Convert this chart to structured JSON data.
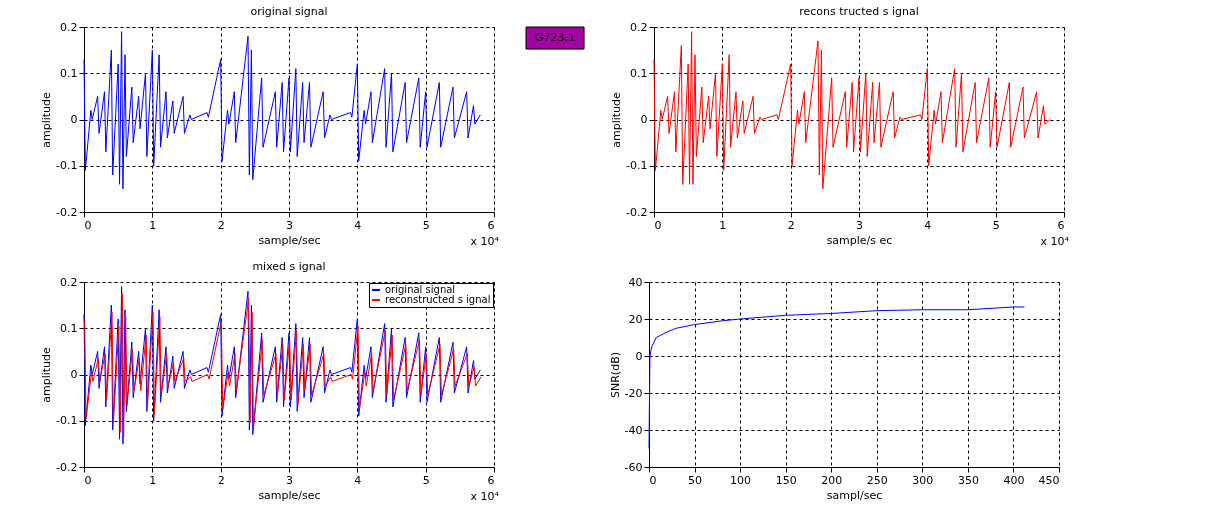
{
  "chart_data": [
    {
      "type": "line",
      "title": "original signal",
      "xlabel": "sample/sec",
      "ylabel": "amplitude",
      "xlim": [
        0,
        6
      ],
      "xticks": [
        0,
        1,
        2,
        3,
        4,
        5,
        6
      ],
      "ylim": [
        -0.2,
        0.2
      ],
      "yticks": [
        -0.2,
        -0.1,
        0,
        0.1,
        0.2
      ],
      "grid": true,
      "line_style": "solid",
      "annotations": [
        "x 10⁴"
      ],
      "x": [
        0.0,
        0.02,
        0.1,
        0.12,
        0.2,
        0.22,
        0.3,
        0.32,
        0.4,
        0.42,
        0.5,
        0.52,
        0.55,
        0.57,
        0.6,
        0.62,
        0.7,
        0.72,
        0.8,
        0.82,
        0.9,
        0.92,
        1.0,
        1.02,
        1.1,
        1.12,
        1.2,
        1.22,
        1.3,
        1.32,
        1.45,
        1.47,
        1.55,
        1.57,
        1.8,
        1.82,
        2.0,
        2.02,
        2.1,
        2.12,
        2.2,
        2.22,
        2.4,
        2.42,
        2.45,
        2.47,
        2.6,
        2.62,
        2.8,
        2.82,
        2.9,
        2.92,
        3.0,
        3.02,
        3.1,
        3.12,
        3.2,
        3.22,
        3.3,
        3.32,
        3.5,
        3.52,
        3.6,
        3.62,
        3.9,
        3.92,
        4.0,
        4.02,
        4.1,
        4.12,
        4.2,
        4.22,
        4.4,
        4.42,
        4.5,
        4.52,
        4.7,
        4.72,
        4.9,
        4.92,
        5.0,
        5.02,
        5.2,
        5.22,
        5.4,
        5.42,
        5.6,
        5.62,
        5.7,
        5.72,
        5.8
      ],
      "series": [
        {
          "color": "#0000ff",
          "values": [
            0.13,
            -0.11,
            0.02,
            0.0,
            0.05,
            -0.03,
            0.06,
            -0.07,
            0.15,
            -0.12,
            0.12,
            -0.14,
            0.19,
            -0.15,
            0.14,
            -0.08,
            0.07,
            -0.05,
            0.05,
            -0.02,
            0.1,
            -0.08,
            0.15,
            -0.1,
            0.14,
            -0.06,
            0.06,
            -0.04,
            0.04,
            -0.03,
            0.05,
            -0.03,
            0.01,
            0.0,
            0.015,
            0.005,
            0.13,
            -0.09,
            0.02,
            -0.01,
            0.06,
            -0.05,
            0.18,
            -0.12,
            0.15,
            -0.13,
            0.09,
            -0.06,
            0.06,
            -0.06,
            0.08,
            -0.07,
            0.09,
            -0.07,
            0.11,
            -0.08,
            0.08,
            -0.05,
            0.08,
            -0.06,
            0.06,
            -0.04,
            0.01,
            0.0,
            0.015,
            0.005,
            0.12,
            -0.09,
            0.02,
            -0.01,
            0.06,
            -0.05,
            0.11,
            -0.06,
            0.1,
            -0.07,
            0.08,
            -0.05,
            0.09,
            -0.06,
            0.06,
            -0.06,
            0.08,
            -0.06,
            0.07,
            -0.04,
            0.06,
            -0.04,
            0.03,
            -0.01,
            0.01
          ]
        }
      ]
    },
    {
      "type": "other",
      "title": "G723.1",
      "color": "#a400a4"
    },
    {
      "type": "line",
      "title": "recons tructed s ignal",
      "xlabel": "sample/s ec",
      "ylabel": "amplitude",
      "xlim": [
        0,
        6
      ],
      "xticks": [
        0,
        1,
        2,
        3,
        4,
        5,
        6
      ],
      "ylim": [
        -0.2,
        0.2
      ],
      "yticks": [
        -0.2,
        -0.1,
        0,
        0.1,
        0.2
      ],
      "grid": true,
      "line_style": "solid",
      "annotations": [
        "x 10⁴"
      ],
      "x": [
        0.0,
        0.02,
        0.1,
        0.12,
        0.2,
        0.22,
        0.3,
        0.32,
        0.4,
        0.42,
        0.5,
        0.52,
        0.55,
        0.57,
        0.6,
        0.62,
        0.7,
        0.72,
        0.8,
        0.82,
        0.9,
        0.92,
        1.0,
        1.02,
        1.1,
        1.12,
        1.2,
        1.22,
        1.3,
        1.32,
        1.45,
        1.47,
        1.55,
        1.57,
        1.8,
        1.82,
        2.0,
        2.02,
        2.1,
        2.12,
        2.2,
        2.22,
        2.4,
        2.42,
        2.45,
        2.47,
        2.6,
        2.62,
        2.8,
        2.82,
        2.9,
        2.92,
        3.0,
        3.02,
        3.1,
        3.12,
        3.2,
        3.22,
        3.3,
        3.32,
        3.5,
        3.52,
        3.6,
        3.62,
        3.9,
        3.92,
        4.0,
        4.02,
        4.1,
        4.12,
        4.2,
        4.22,
        4.4,
        4.42,
        4.5,
        4.52,
        4.7,
        4.72,
        4.9,
        4.92,
        5.0,
        5.02,
        5.2,
        5.22,
        5.4,
        5.42,
        5.6,
        5.62,
        5.7,
        5.72,
        5.8
      ],
      "series": [
        {
          "color": "#ff0000",
          "values": [
            0.13,
            -0.11,
            0.02,
            0.0,
            0.05,
            -0.03,
            0.06,
            -0.07,
            0.16,
            -0.14,
            0.12,
            -0.14,
            0.19,
            -0.14,
            0.14,
            -0.08,
            0.07,
            -0.05,
            0.05,
            -0.02,
            0.1,
            -0.08,
            0.12,
            -0.11,
            0.14,
            -0.06,
            0.06,
            -0.04,
            0.04,
            -0.03,
            0.05,
            -0.03,
            0.005,
            0.0,
            0.01,
            0.0,
            0.12,
            -0.1,
            0.02,
            -0.01,
            0.06,
            -0.05,
            0.17,
            -0.12,
            0.15,
            -0.15,
            0.09,
            -0.06,
            0.06,
            -0.06,
            0.08,
            -0.07,
            0.09,
            -0.07,
            0.1,
            -0.08,
            0.08,
            -0.05,
            0.08,
            -0.06,
            0.06,
            -0.04,
            0.005,
            0.0,
            0.01,
            0.0,
            0.11,
            -0.1,
            0.02,
            -0.01,
            0.06,
            -0.05,
            0.11,
            -0.06,
            0.1,
            -0.07,
            0.08,
            -0.05,
            0.09,
            -0.06,
            0.06,
            -0.06,
            0.08,
            -0.06,
            0.07,
            -0.04,
            0.06,
            -0.04,
            0.03,
            -0.01,
            0.0
          ]
        }
      ]
    },
    {
      "type": "line",
      "title": "mixed s ignal",
      "xlabel": "sample/sec",
      "ylabel": "amplitude",
      "xlim": [
        0,
        6
      ],
      "xticks": [
        0,
        1,
        2,
        3,
        4,
        5,
        6
      ],
      "ylim": [
        -0.2,
        0.2
      ],
      "yticks": [
        -0.2,
        -0.1,
        0,
        0.1,
        0.2
      ],
      "grid": true,
      "line_style": "solid",
      "legend": "top right",
      "annotations": [
        "x 10⁴"
      ],
      "x": [
        0.0,
        0.02,
        0.1,
        0.12,
        0.2,
        0.22,
        0.3,
        0.32,
        0.4,
        0.42,
        0.5,
        0.52,
        0.55,
        0.57,
        0.6,
        0.62,
        0.7,
        0.72,
        0.8,
        0.82,
        0.9,
        0.92,
        1.0,
        1.02,
        1.1,
        1.12,
        1.2,
        1.22,
        1.3,
        1.32,
        1.45,
        1.47,
        1.55,
        1.57,
        1.8,
        1.82,
        2.0,
        2.02,
        2.1,
        2.12,
        2.2,
        2.22,
        2.4,
        2.42,
        2.45,
        2.47,
        2.6,
        2.62,
        2.8,
        2.82,
        2.9,
        2.92,
        3.0,
        3.02,
        3.1,
        3.12,
        3.2,
        3.22,
        3.3,
        3.32,
        3.5,
        3.52,
        3.6,
        3.62,
        3.9,
        3.92,
        4.0,
        4.02,
        4.1,
        4.12,
        4.2,
        4.22,
        4.4,
        4.42,
        4.5,
        4.52,
        4.7,
        4.72,
        4.9,
        4.92,
        5.0,
        5.02,
        5.2,
        5.22,
        5.4,
        5.42,
        5.6,
        5.62,
        5.7,
        5.72,
        5.8
      ],
      "series": [
        {
          "name": "original signal",
          "color": "#0000ff",
          "values": [
            0.13,
            -0.11,
            0.02,
            0.0,
            0.05,
            -0.03,
            0.06,
            -0.07,
            0.15,
            -0.12,
            0.12,
            -0.14,
            0.19,
            -0.15,
            0.14,
            -0.08,
            0.07,
            -0.05,
            0.05,
            -0.02,
            0.1,
            -0.08,
            0.15,
            -0.1,
            0.14,
            -0.06,
            0.06,
            -0.04,
            0.04,
            -0.03,
            0.05,
            -0.03,
            0.01,
            0.0,
            0.015,
            0.005,
            0.13,
            -0.09,
            0.02,
            -0.01,
            0.06,
            -0.05,
            0.18,
            -0.12,
            0.15,
            -0.13,
            0.09,
            -0.06,
            0.06,
            -0.06,
            0.08,
            -0.07,
            0.09,
            -0.07,
            0.11,
            -0.08,
            0.08,
            -0.05,
            0.08,
            -0.06,
            0.06,
            -0.04,
            0.01,
            0.0,
            0.015,
            0.005,
            0.12,
            -0.09,
            0.02,
            -0.01,
            0.06,
            -0.05,
            0.11,
            -0.06,
            0.1,
            -0.07,
            0.08,
            -0.05,
            0.09,
            -0.06,
            0.06,
            -0.06,
            0.08,
            -0.06,
            0.07,
            -0.04,
            0.06,
            -0.04,
            0.03,
            -0.01,
            0.01
          ]
        },
        {
          "name": "reconstructed s ignal",
          "color": "#ff0000",
          "x": [
            0.01,
            0.03,
            0.11,
            0.13,
            0.21,
            0.23,
            0.31,
            0.33,
            0.41,
            0.43,
            0.51,
            0.53,
            0.56,
            0.58,
            0.61,
            0.63,
            0.71,
            0.73,
            0.81,
            0.83,
            0.91,
            0.93,
            1.01,
            1.03,
            1.11,
            1.13,
            1.21,
            1.23,
            1.31,
            1.33,
            1.46,
            1.48,
            1.56,
            1.58,
            1.81,
            1.83,
            2.01,
            2.03,
            2.11,
            2.13,
            2.21,
            2.23,
            2.41,
            2.43,
            2.46,
            2.48,
            2.61,
            2.63,
            2.81,
            2.83,
            2.91,
            2.93,
            3.01,
            3.03,
            3.11,
            3.13,
            3.21,
            3.23,
            3.31,
            3.33,
            3.51,
            3.53,
            3.61,
            3.63,
            3.91,
            3.93,
            4.01,
            4.03,
            4.11,
            4.13,
            4.21,
            4.23,
            4.41,
            4.43,
            4.51,
            4.53,
            4.71,
            4.73,
            4.91,
            4.93,
            5.01,
            5.03,
            5.21,
            5.23,
            5.41,
            5.43,
            5.61,
            5.63,
            5.71,
            5.73,
            5.81
          ],
          "values": [
            0.115,
            -0.095,
            0.005,
            -0.015,
            0.035,
            -0.015,
            0.045,
            -0.055,
            0.135,
            -0.105,
            0.105,
            -0.125,
            0.175,
            -0.135,
            0.125,
            -0.065,
            0.055,
            -0.035,
            0.035,
            -0.035,
            0.085,
            -0.065,
            0.135,
            -0.085,
            0.125,
            -0.045,
            0.045,
            -0.025,
            0.025,
            -0.015,
            0.035,
            -0.015,
            -0.005,
            -0.015,
            0.0,
            -0.01,
            0.115,
            -0.075,
            0.005,
            -0.025,
            0.045,
            -0.035,
            0.165,
            -0.105,
            0.135,
            -0.115,
            0.075,
            -0.045,
            0.045,
            -0.045,
            0.065,
            -0.055,
            0.075,
            -0.055,
            0.095,
            -0.065,
            0.065,
            -0.035,
            0.065,
            -0.045,
            0.045,
            -0.025,
            -0.005,
            -0.015,
            0.0,
            -0.01,
            0.105,
            -0.075,
            0.005,
            -0.025,
            0.045,
            -0.035,
            0.095,
            -0.045,
            0.085,
            -0.055,
            0.065,
            -0.035,
            0.075,
            -0.045,
            0.045,
            -0.045,
            0.065,
            -0.045,
            0.055,
            -0.025,
            0.045,
            -0.025,
            0.015,
            -0.025,
            -0.005
          ]
        }
      ]
    },
    {
      "type": "line",
      "xlabel": "sampl/sec",
      "ylabel": "SNR(dB)",
      "xlim": [
        0,
        450
      ],
      "xticks": [
        0,
        50,
        100,
        150,
        200,
        250,
        300,
        350,
        400,
        450
      ],
      "ylim": [
        -60,
        40
      ],
      "yticks": [
        -60,
        -40,
        -20,
        0,
        20,
        40
      ],
      "grid": true,
      "line_style": "solid",
      "x": [
        0,
        1,
        3,
        8,
        20,
        30,
        50,
        80,
        100,
        150,
        200,
        250,
        300,
        350,
        400,
        412
      ],
      "series": [
        {
          "color": "#0000ff",
          "values": [
            -50,
            0,
            5,
            10,
            13,
            15,
            17,
            19,
            20,
            22,
            23,
            24.5,
            25,
            25,
            26.5,
            26.5
          ]
        }
      ]
    }
  ]
}
